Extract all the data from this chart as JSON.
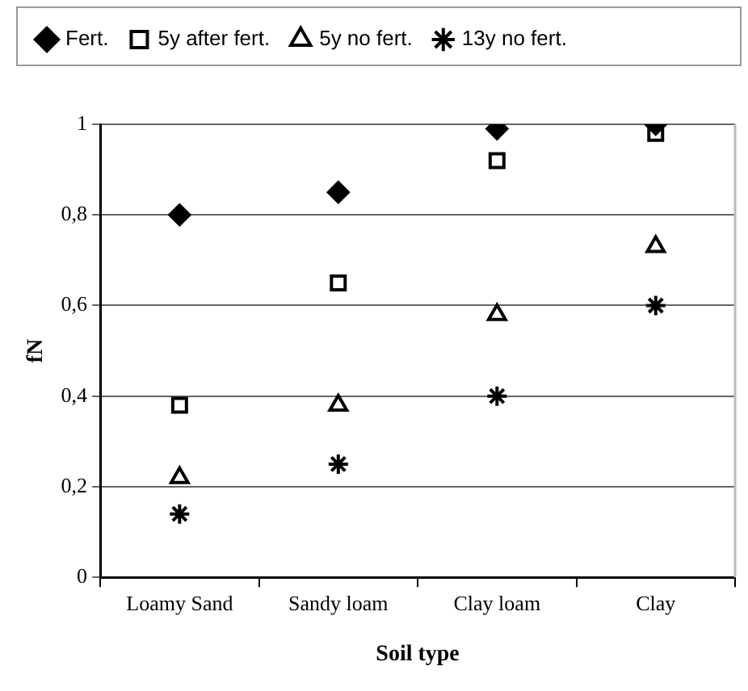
{
  "chart_data": {
    "type": "scatter",
    "xlabel": "Soil type",
    "ylabel": "fN",
    "categories": [
      "Loamy Sand",
      "Sandy loam",
      "Clay loam",
      "Clay"
    ],
    "series": [
      {
        "name": "Fert.",
        "color": "#000000",
        "marker": "diamond",
        "values": [
          0.8,
          0.85,
          0.99,
          1.0
        ]
      },
      {
        "name": "5y after fert.",
        "color": "#000000",
        "marker": "square",
        "values": [
          0.38,
          0.65,
          0.92,
          0.98
        ]
      },
      {
        "name": "5y no fert.",
        "color": "#000000",
        "marker": "triangle",
        "values": [
          0.22,
          0.38,
          0.58,
          0.73
        ]
      },
      {
        "name": "13y no fert.",
        "color": "#000000",
        "marker": "cross",
        "values": [
          0.14,
          0.25,
          0.4,
          0.6
        ]
      }
    ],
    "ylim": [
      0,
      1
    ],
    "yticks": [
      0,
      {
        "value": 0.2,
        "label": "0,2"
      },
      {
        "value": 0.4,
        "label": "0,4"
      },
      {
        "value": 0.6,
        "label": "0,6"
      },
      {
        "value": 0.8,
        "label": "0,8"
      },
      1
    ],
    "grid": "y",
    "legend": "top"
  }
}
